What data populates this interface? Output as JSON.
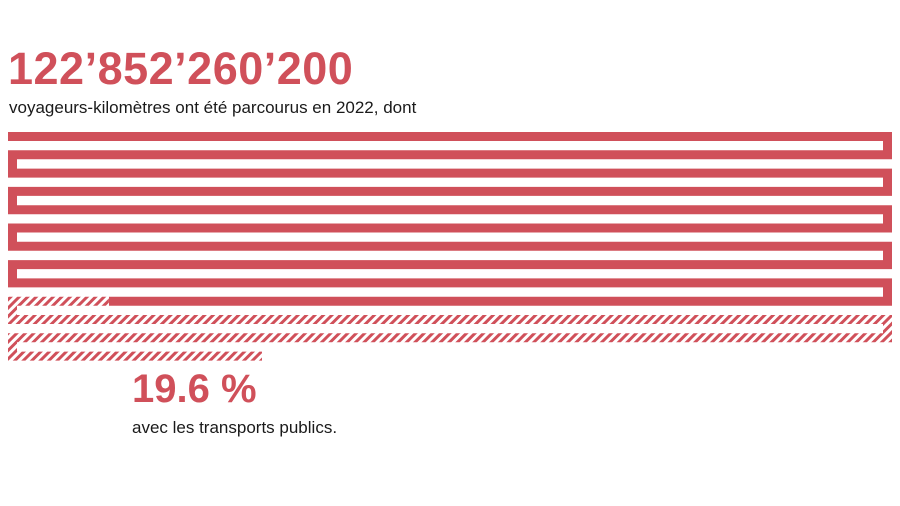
{
  "chart_data": {
    "type": "area",
    "headline": {
      "value": "122’852’260’200",
      "text": "voyageurs-kilomètres ont été parcourus en 2022, dont"
    },
    "share": {
      "value": "19.6 %",
      "text": "avec les transports publics.",
      "fraction": 0.196
    },
    "total": 122852260200,
    "colors": {
      "accent": "#d0505a",
      "text": "#1a1a1a",
      "background": "#ffffff"
    }
  }
}
